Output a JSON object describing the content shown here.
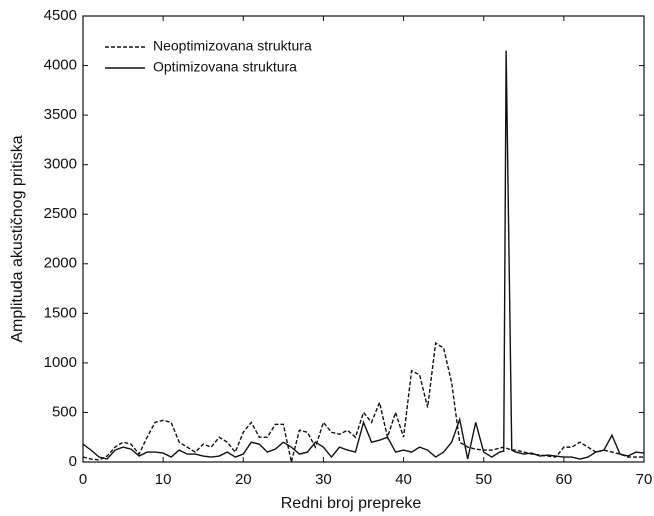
{
  "chart_data": {
    "type": "line",
    "xlabel": "Redni broj prepreke",
    "ylabel": "Amplituda akustičnog pritiska",
    "x": [
      0,
      1,
      2,
      3,
      4,
      5,
      6,
      7,
      8,
      9,
      10,
      11,
      12,
      13,
      14,
      15,
      16,
      17,
      18,
      19,
      20,
      21,
      22,
      23,
      24,
      25,
      26,
      27,
      28,
      29,
      30,
      31,
      32,
      33,
      34,
      35,
      36,
      37,
      38,
      39,
      40,
      41,
      42,
      43,
      44,
      45,
      46,
      47,
      48,
      49,
      50,
      51,
      52,
      52.5,
      52.8,
      53.5,
      54,
      55,
      56,
      57,
      58,
      59,
      60,
      61,
      62,
      63,
      64,
      65,
      66,
      67,
      68,
      69,
      70
    ],
    "series": [
      {
        "name": "Neoptimizovana struktura",
        "color": "#111111",
        "linestyle": "dashed",
        "values": [
          50,
          30,
          20,
          60,
          150,
          200,
          180,
          80,
          250,
          400,
          420,
          400,
          200,
          150,
          100,
          180,
          150,
          250,
          200,
          100,
          300,
          400,
          250,
          250,
          380,
          380,
          0,
          320,
          300,
          150,
          400,
          300,
          280,
          320,
          250,
          500,
          400,
          600,
          250,
          500,
          250,
          920,
          880,
          550,
          1200,
          1150,
          800,
          200,
          150,
          130,
          120,
          120,
          140,
          150,
          140,
          120,
          120,
          100,
          80,
          70,
          60,
          50,
          150,
          150,
          200,
          150,
          100,
          120,
          100,
          80,
          50,
          50,
          50
        ]
      },
      {
        "name": "Optimizovana struktura",
        "color": "#111111",
        "linestyle": "solid",
        "values": [
          180,
          120,
          50,
          30,
          120,
          150,
          130,
          60,
          100,
          100,
          90,
          50,
          120,
          80,
          80,
          60,
          50,
          60,
          100,
          50,
          80,
          200,
          180,
          100,
          130,
          200,
          150,
          80,
          100,
          200,
          150,
          50,
          150,
          120,
          100,
          400,
          200,
          220,
          250,
          100,
          120,
          100,
          150,
          120,
          50,
          100,
          200,
          430,
          30,
          400,
          100,
          50,
          100,
          110,
          4150,
          120,
          100,
          80,
          90,
          60,
          70,
          60,
          50,
          50,
          30,
          50,
          100,
          120,
          270,
          80,
          60,
          100,
          90
        ]
      }
    ],
    "xlim": [
      0,
      70
    ],
    "xticks": [
      0,
      10,
      20,
      30,
      40,
      50,
      60,
      70
    ],
    "ylim": [
      0,
      4500
    ],
    "yticks": [
      0,
      500,
      1000,
      1500,
      2000,
      2500,
      3000,
      3500,
      4000,
      4500
    ],
    "legend": "upper left",
    "grid": false
  }
}
